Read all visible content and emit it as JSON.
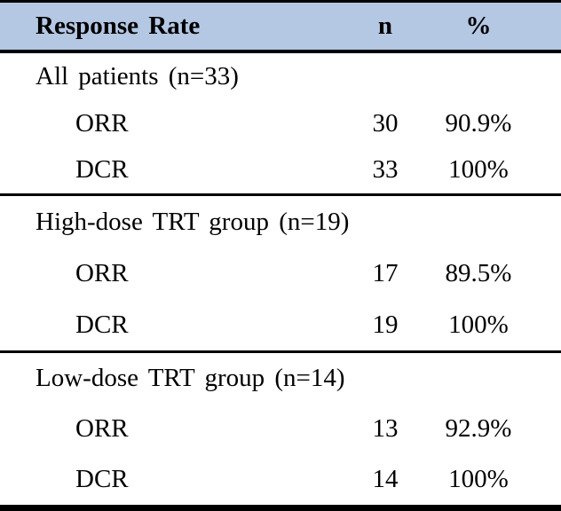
{
  "chart_data": {
    "type": "table",
    "title": "Response Rate",
    "columns": [
      "Response Rate",
      "n",
      "%"
    ],
    "sections": [
      {
        "group": "All patients (n=33)",
        "rows": [
          {
            "metric": "ORR",
            "n": "30",
            "pct": "90.9%"
          },
          {
            "metric": "DCR",
            "n": "33",
            "pct": "100%"
          }
        ]
      },
      {
        "group": "High-dose TRT group (n=19)",
        "rows": [
          {
            "metric": "ORR",
            "n": "17",
            "pct": "89.5%"
          },
          {
            "metric": "DCR",
            "n": "19",
            "pct": "100%"
          }
        ]
      },
      {
        "group": "Low-dose TRT group (n=14)",
        "rows": [
          {
            "metric": "ORR",
            "n": "13",
            "pct": "92.9%"
          },
          {
            "metric": "DCR",
            "n": "14",
            "pct": "100%"
          }
        ]
      }
    ],
    "layout": {
      "grid": false,
      "rules": "horizontal-only",
      "header_style": "bold shaded band"
    }
  },
  "style": {
    "header_bg": "#b4c7e3",
    "border_color": "#000000",
    "text_color": "#000000"
  }
}
